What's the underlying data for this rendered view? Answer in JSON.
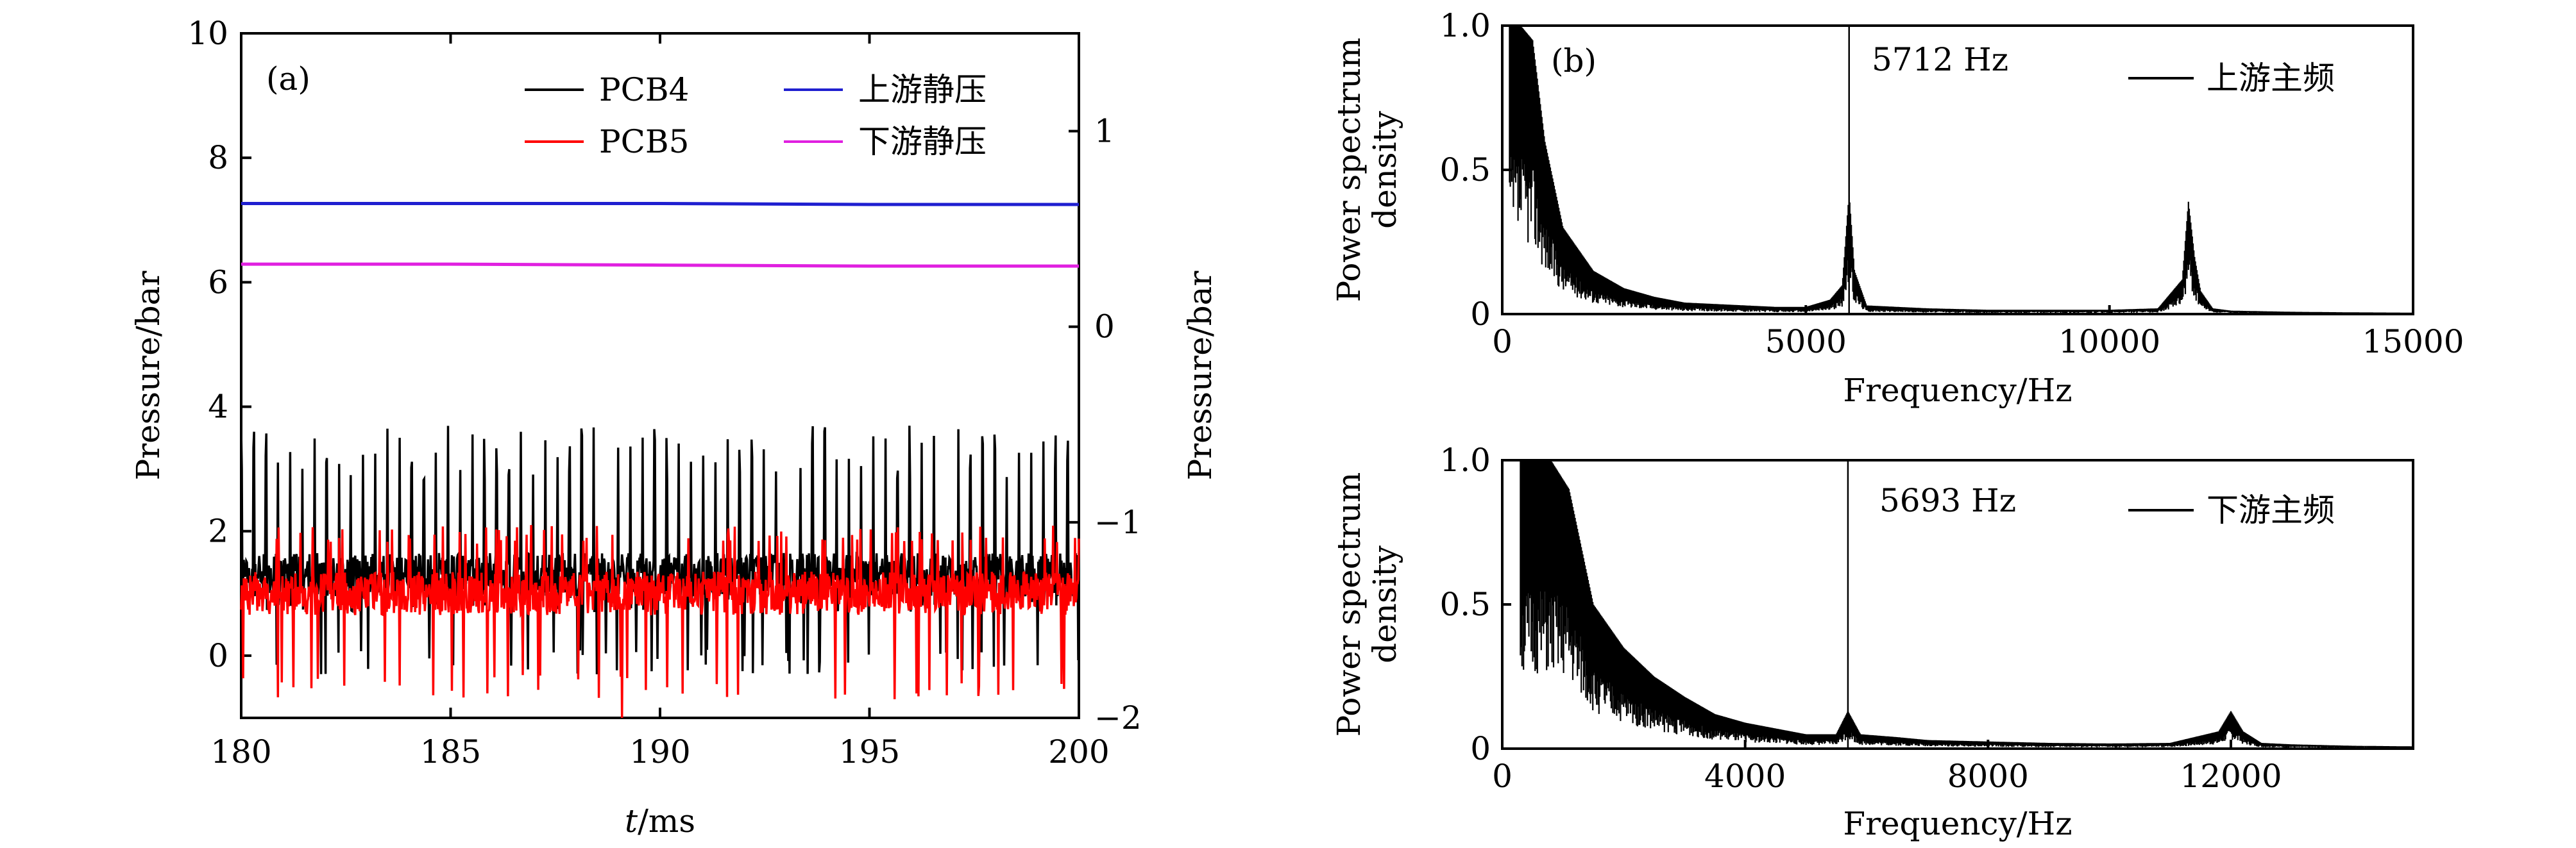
{
  "figure": {
    "panel_a_label": "(a)",
    "panel_b_label": "(b)"
  },
  "chart_data": [
    {
      "id": "a",
      "type": "line",
      "xlabel_italic": "t",
      "xlabel_rest": "/ms",
      "ylabel": "Pressure/bar",
      "y2label": "Pressure/bar",
      "xlim": [
        180,
        200
      ],
      "ylim": [
        -1,
        10
      ],
      "y2lim": [
        -2,
        1.5
      ],
      "xticks": [
        180,
        185,
        190,
        195,
        200
      ],
      "yticks": [
        0,
        2,
        4,
        6,
        8,
        10
      ],
      "y2ticks": [
        -2,
        -1,
        0,
        1
      ],
      "y2ticklabels": [
        "−2",
        "−1",
        "0",
        "1"
      ],
      "legend": {
        "position": "top-right",
        "ncol": 2
      },
      "grid": false,
      "series": [
        {
          "name": "PCB4",
          "axis": "left",
          "color": "#000000",
          "kind": "fluctuating",
          "baseline": 1.3,
          "noise": 0.35,
          "spike_period_ms": 0.29,
          "spike_max": [
            2.8,
            3.7
          ],
          "min": -0.3
        },
        {
          "name": "PCB5",
          "axis": "left",
          "color": "#ff0000",
          "kind": "fluctuating",
          "baseline": 1.0,
          "noise": 0.35,
          "spike_max": [
            1.8,
            2.1
          ],
          "min": -0.7,
          "notable_dips": [
            {
              "x": 187.1,
              "y": -0.55
            },
            {
              "x": 189.1,
              "y": -1.0
            },
            {
              "x": 195.6,
              "y": -0.7
            }
          ]
        },
        {
          "name": "上游静压",
          "axis": "right",
          "color": "#1f1fd0",
          "kind": "static",
          "x": [
            180,
            185,
            190,
            195,
            200
          ],
          "y": [
            0.63,
            0.63,
            0.63,
            0.625,
            0.625
          ]
        },
        {
          "name": "下游静压",
          "axis": "right",
          "color": "#e020e0",
          "kind": "static",
          "x": [
            180,
            185,
            190,
            195,
            200
          ],
          "y": [
            0.32,
            0.32,
            0.315,
            0.31,
            0.31
          ]
        }
      ]
    },
    {
      "id": "b-top",
      "type": "line",
      "xlabel": "Frequency/Hz",
      "ylabel_line1": "Power spectrum",
      "ylabel_line2": "density",
      "xlim": [
        0,
        15000
      ],
      "ylim": [
        0,
        1.0
      ],
      "xticks": [
        0,
        5000,
        10000,
        15000
      ],
      "yticks": [
        0,
        0.5,
        1.0
      ],
      "yticklabels": [
        "0",
        "0.5",
        "1.0"
      ],
      "annotation": {
        "text": "5712 Hz",
        "x": 5712
      },
      "series": [
        {
          "name": "上游主频",
          "color": "#000000",
          "x": [
            120,
            300,
            500,
            700,
            1000,
            1500,
            2000,
            2500,
            3000,
            3500,
            4000,
            4500,
            5000,
            5400,
            5600,
            5712,
            5800,
            6000,
            7000,
            8000,
            9000,
            10000,
            10800,
            11200,
            11300,
            11400,
            11500,
            11700,
            12000,
            13000,
            14000,
            15000
          ],
          "y": [
            1.0,
            1.0,
            0.95,
            0.6,
            0.3,
            0.15,
            0.09,
            0.06,
            0.04,
            0.035,
            0.03,
            0.025,
            0.025,
            0.05,
            0.1,
            0.42,
            0.15,
            0.03,
            0.02,
            0.015,
            0.015,
            0.015,
            0.02,
            0.12,
            0.39,
            0.2,
            0.08,
            0.02,
            0.012,
            0.008,
            0.006,
            0.005
          ]
        }
      ]
    },
    {
      "id": "b-bottom",
      "type": "line",
      "xlabel": "Frequency/Hz",
      "ylabel_line1": "Power spectrum",
      "ylabel_line2": "density",
      "xlim": [
        0,
        15000
      ],
      "ylim": [
        0,
        1.0
      ],
      "xticks": [
        0,
        4000,
        8000,
        12000
      ],
      "yticks": [
        0,
        0.5,
        1.0
      ],
      "yticklabels": [
        "0",
        "0.5",
        "1.0"
      ],
      "annotation": {
        "text": "5693 Hz",
        "x": 5693
      },
      "series": [
        {
          "name": "下游主频",
          "color": "#000000",
          "x": [
            300,
            500,
            800,
            1100,
            1500,
            2000,
            2500,
            3000,
            3500,
            4000,
            4500,
            5000,
            5500,
            5693,
            5900,
            6500,
            7000,
            8000,
            9000,
            10000,
            11000,
            11800,
            12000,
            12200,
            12500,
            13000,
            14000,
            15000
          ],
          "y": [
            1.0,
            1.0,
            1.0,
            0.9,
            0.5,
            0.35,
            0.25,
            0.18,
            0.12,
            0.09,
            0.07,
            0.05,
            0.05,
            0.13,
            0.05,
            0.04,
            0.03,
            0.025,
            0.02,
            0.018,
            0.02,
            0.06,
            0.13,
            0.06,
            0.02,
            0.015,
            0.01,
            0.008
          ]
        }
      ]
    }
  ]
}
